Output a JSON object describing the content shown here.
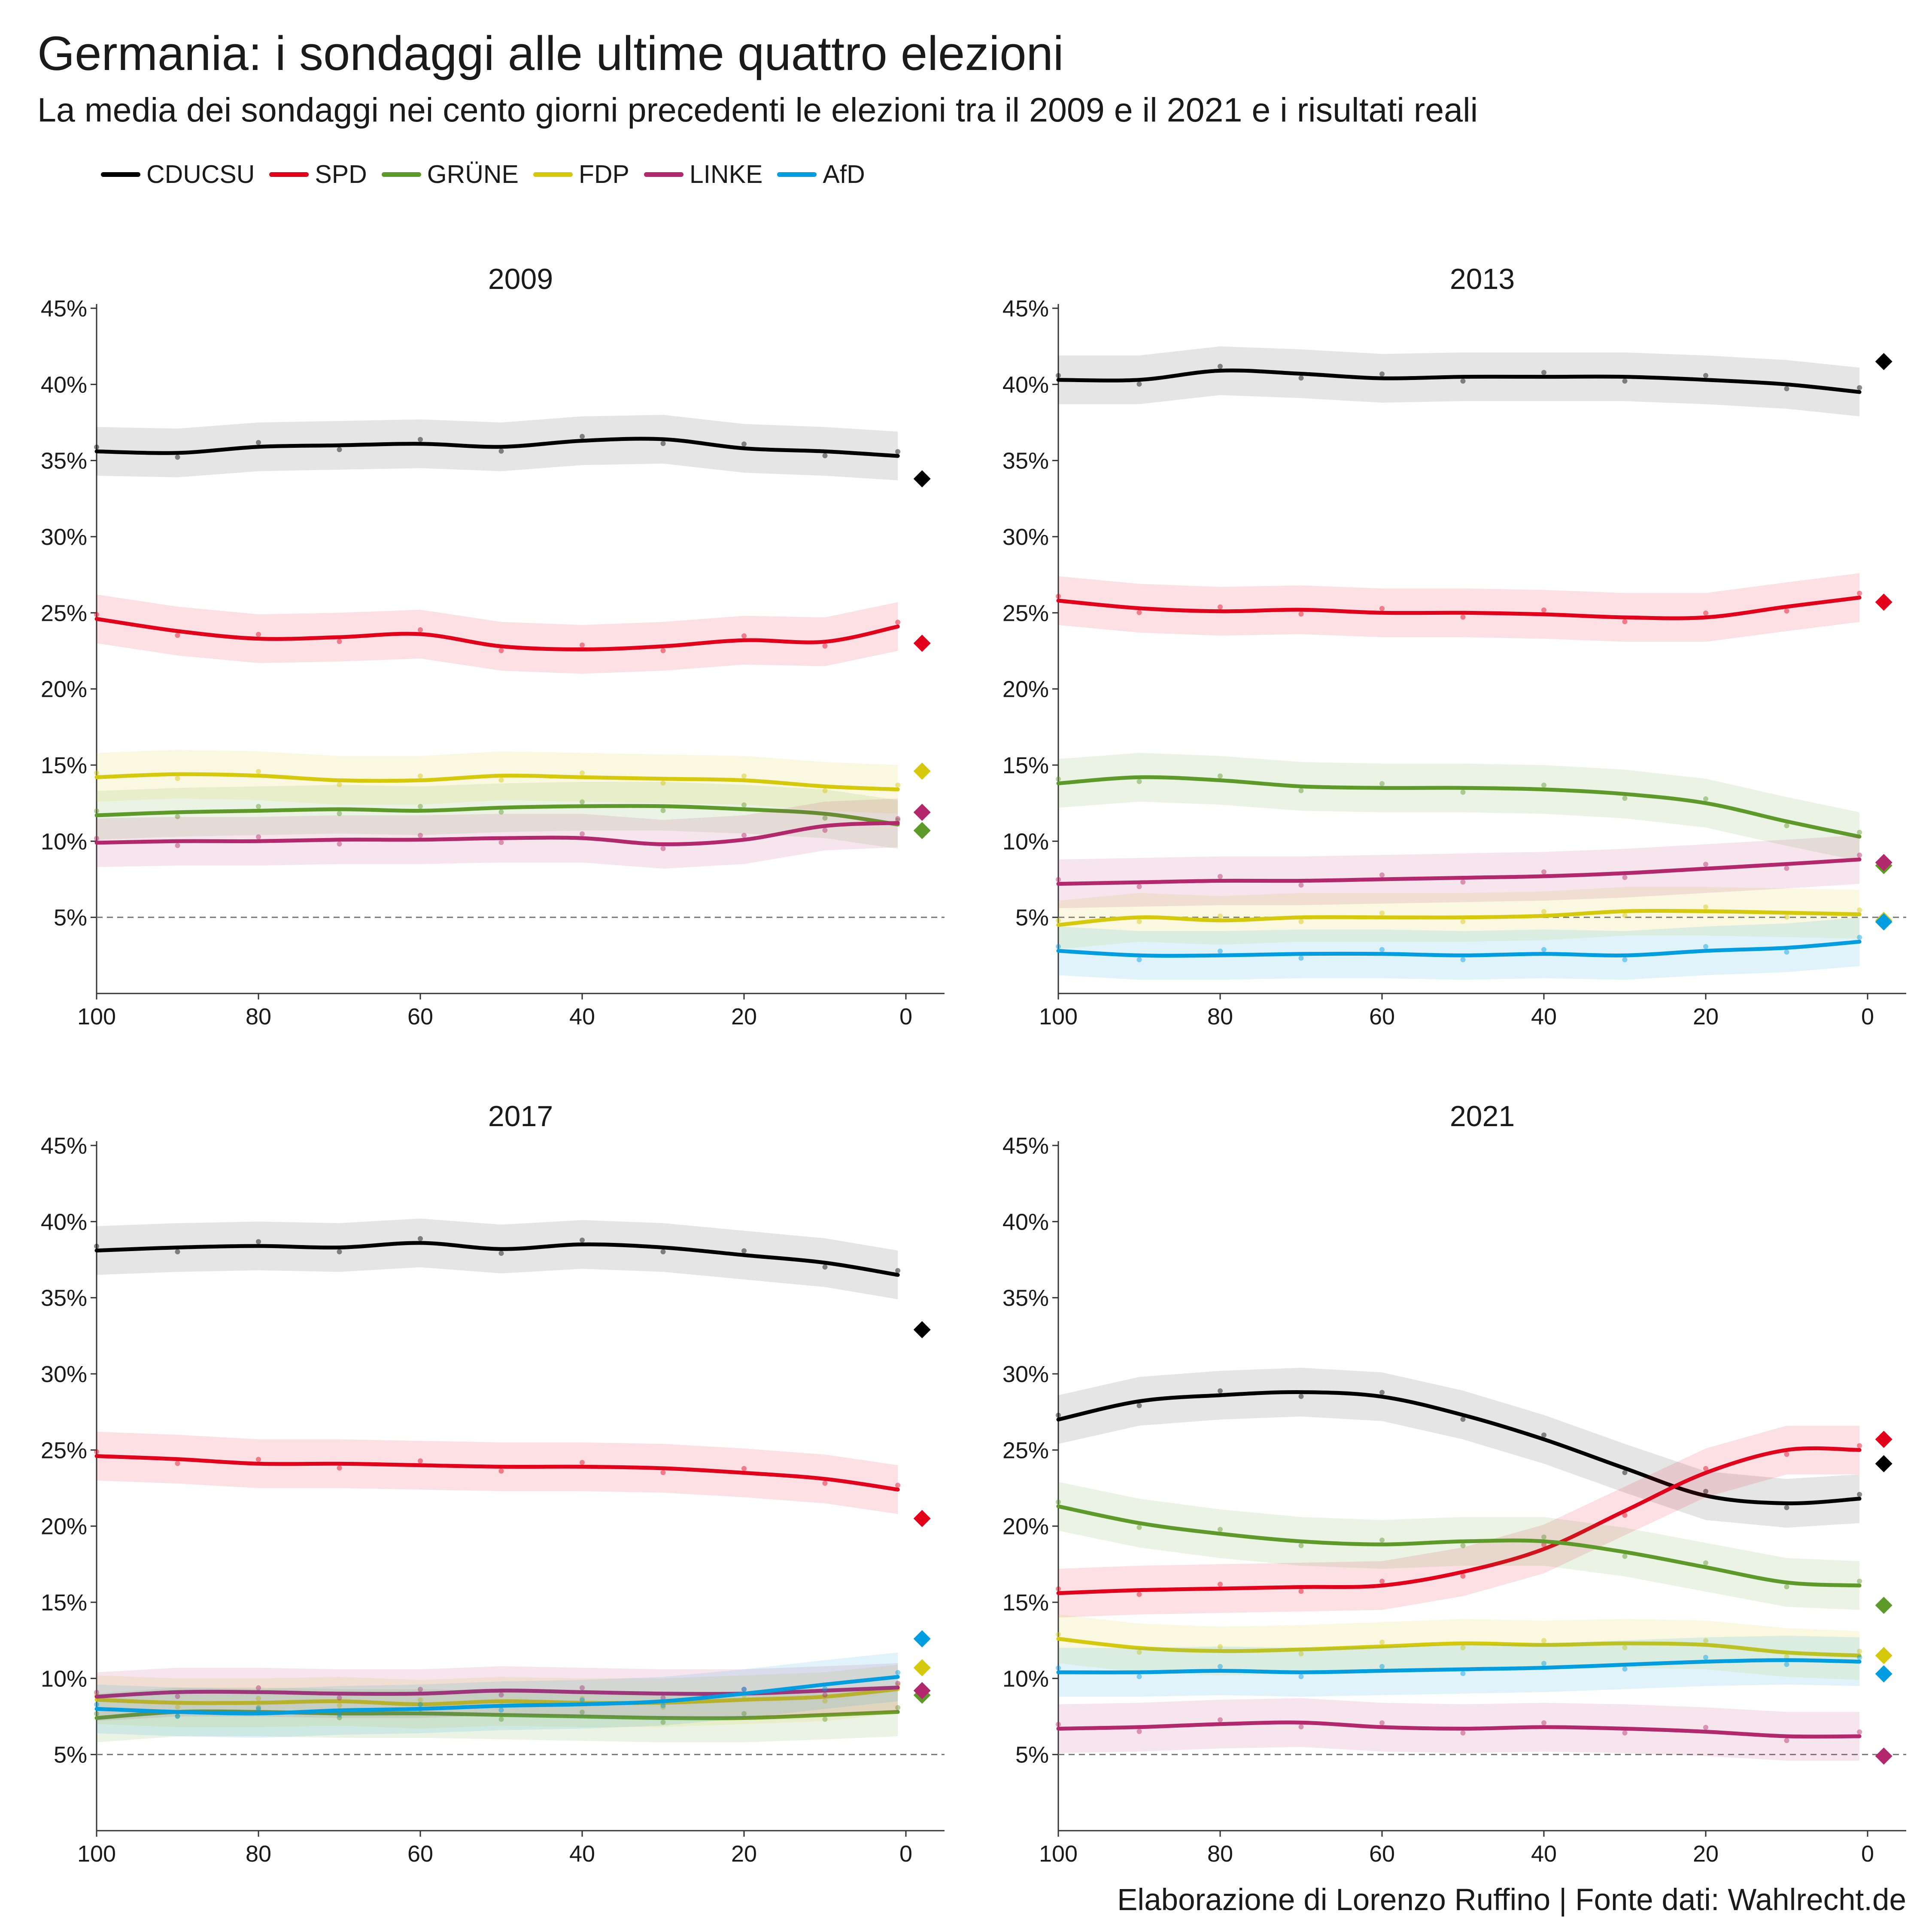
{
  "title": "Germania: i sondaggi alle ultime quattro elezioni",
  "subtitle": "La media dei sondaggi nei cento giorni precedenti le elezioni tra il 2009 e il 2021 e i risultati reali",
  "credit": "Elaborazione di Lorenzo Ruffino | Fonte dati: Wahlrecht.de",
  "legend": [
    {
      "name": "CDUCSU",
      "color": "#000000"
    },
    {
      "name": "SPD",
      "color": "#e3001b"
    },
    {
      "name": "GRÜNE",
      "color": "#5d9a2a"
    },
    {
      "name": "FDP",
      "color": "#d6c80a"
    },
    {
      "name": "LINKE",
      "color": "#b3276d"
    },
    {
      "name": "AfD",
      "color": "#009ee0"
    }
  ],
  "chart_data": [
    {
      "type": "line",
      "title": "2009",
      "xlabel": "",
      "ylabel": "",
      "xlim": [
        100,
        0
      ],
      "ylim": [
        0,
        45
      ],
      "x_ticks": [
        "100",
        "80",
        "60",
        "40",
        "20",
        "0"
      ],
      "y_ticks": [
        "5%",
        "10%",
        "15%",
        "20%",
        "25%",
        "30%",
        "35%",
        "40%",
        "45%"
      ],
      "threshold": 5,
      "x": [
        100,
        90,
        80,
        70,
        60,
        50,
        40,
        30,
        20,
        10,
        1
      ],
      "series": [
        {
          "name": "CDUCSU",
          "values": [
            35.6,
            35.5,
            35.9,
            36.0,
            36.1,
            35.9,
            36.3,
            36.4,
            35.8,
            35.6,
            35.3
          ],
          "result": 33.8
        },
        {
          "name": "SPD",
          "values": [
            24.6,
            23.8,
            23.3,
            23.4,
            23.6,
            22.8,
            22.6,
            22.8,
            23.2,
            23.1,
            24.1
          ],
          "result": 23.0
        },
        {
          "name": "GRÜNE",
          "values": [
            11.7,
            11.9,
            12.0,
            12.1,
            12.0,
            12.2,
            12.3,
            12.3,
            12.1,
            11.8,
            11.1
          ],
          "result": 10.7
        },
        {
          "name": "FDP",
          "values": [
            14.2,
            14.4,
            14.3,
            14.0,
            14.0,
            14.3,
            14.2,
            14.1,
            14.0,
            13.6,
            13.4
          ],
          "result": 14.6
        },
        {
          "name": "LINKE",
          "values": [
            9.9,
            10.0,
            10.0,
            10.1,
            10.1,
            10.2,
            10.2,
            9.8,
            10.1,
            11.0,
            11.2
          ],
          "result": 11.9
        }
      ]
    },
    {
      "type": "line",
      "title": "2013",
      "xlabel": "",
      "ylabel": "",
      "xlim": [
        100,
        0
      ],
      "ylim": [
        0,
        45
      ],
      "x_ticks": [
        "100",
        "80",
        "60",
        "40",
        "20",
        "0"
      ],
      "y_ticks": [
        "5%",
        "10%",
        "15%",
        "20%",
        "25%",
        "30%",
        "35%",
        "40%",
        "45%"
      ],
      "threshold": 5,
      "x": [
        100,
        90,
        80,
        70,
        60,
        50,
        40,
        30,
        20,
        10,
        1
      ],
      "series": [
        {
          "name": "CDUCSU",
          "values": [
            40.3,
            40.3,
            40.9,
            40.7,
            40.4,
            40.5,
            40.5,
            40.5,
            40.3,
            40.0,
            39.5
          ],
          "result": 41.5
        },
        {
          "name": "SPD",
          "values": [
            25.8,
            25.3,
            25.1,
            25.2,
            25.0,
            25.0,
            24.9,
            24.7,
            24.7,
            25.4,
            26.0
          ],
          "result": 25.7
        },
        {
          "name": "GRÜNE",
          "values": [
            13.8,
            14.2,
            14.0,
            13.6,
            13.5,
            13.5,
            13.4,
            13.1,
            12.5,
            11.3,
            10.3
          ],
          "result": 8.4
        },
        {
          "name": "FDP",
          "values": [
            4.5,
            5.0,
            4.8,
            5.0,
            5.0,
            5.0,
            5.1,
            5.4,
            5.4,
            5.3,
            5.2
          ],
          "result": 4.8
        },
        {
          "name": "LINKE",
          "values": [
            7.2,
            7.3,
            7.4,
            7.4,
            7.5,
            7.6,
            7.7,
            7.9,
            8.2,
            8.5,
            8.8
          ],
          "result": 8.6
        },
        {
          "name": "AfD",
          "values": [
            2.8,
            2.5,
            2.5,
            2.6,
            2.6,
            2.5,
            2.6,
            2.5,
            2.8,
            3.0,
            3.4
          ],
          "result": 4.7
        }
      ]
    },
    {
      "type": "line",
      "title": "2017",
      "xlabel": "",
      "ylabel": "",
      "xlim": [
        100,
        0
      ],
      "ylim": [
        0,
        45
      ],
      "x_ticks": [
        "100",
        "80",
        "60",
        "40",
        "20",
        "0"
      ],
      "y_ticks": [
        "5%",
        "10%",
        "15%",
        "20%",
        "25%",
        "30%",
        "35%",
        "40%",
        "45%"
      ],
      "threshold": 5,
      "x": [
        100,
        90,
        80,
        70,
        60,
        50,
        40,
        30,
        20,
        10,
        1
      ],
      "series": [
        {
          "name": "CDUCSU",
          "values": [
            38.1,
            38.3,
            38.4,
            38.3,
            38.6,
            38.2,
            38.5,
            38.3,
            37.8,
            37.3,
            36.5
          ],
          "result": 32.9
        },
        {
          "name": "SPD",
          "values": [
            24.6,
            24.4,
            24.1,
            24.1,
            24.0,
            23.9,
            23.9,
            23.8,
            23.5,
            23.1,
            22.4
          ],
          "result": 20.5
        },
        {
          "name": "GRÜNE",
          "values": [
            7.4,
            7.8,
            7.8,
            7.7,
            7.7,
            7.6,
            7.5,
            7.4,
            7.4,
            7.6,
            7.8
          ],
          "result": 8.9
        },
        {
          "name": "FDP",
          "values": [
            8.6,
            8.4,
            8.4,
            8.5,
            8.3,
            8.5,
            8.4,
            8.4,
            8.6,
            8.8,
            9.3
          ],
          "result": 10.7
        },
        {
          "name": "LINKE",
          "values": [
            8.8,
            9.1,
            9.1,
            9.0,
            9.0,
            9.2,
            9.1,
            9.0,
            9.0,
            9.2,
            9.4
          ],
          "result": 9.2
        },
        {
          "name": "AfD",
          "values": [
            8.0,
            7.8,
            7.7,
            7.9,
            8.0,
            8.2,
            8.3,
            8.5,
            9.0,
            9.6,
            10.1
          ],
          "result": 12.6
        }
      ]
    },
    {
      "type": "line",
      "title": "2021",
      "xlabel": "",
      "ylabel": "",
      "xlim": [
        100,
        0
      ],
      "ylim": [
        0,
        45
      ],
      "x_ticks": [
        "100",
        "80",
        "60",
        "40",
        "20",
        "0"
      ],
      "y_ticks": [
        "5%",
        "10%",
        "15%",
        "20%",
        "25%",
        "30%",
        "35%",
        "40%",
        "45%"
      ],
      "threshold": 5,
      "x": [
        100,
        90,
        80,
        70,
        60,
        50,
        40,
        30,
        20,
        10,
        1
      ],
      "series": [
        {
          "name": "CDUCSU",
          "values": [
            27.0,
            28.2,
            28.6,
            28.8,
            28.5,
            27.3,
            25.7,
            23.8,
            22.0,
            21.5,
            21.8
          ],
          "result": 24.1
        },
        {
          "name": "SPD",
          "values": [
            15.6,
            15.8,
            15.9,
            16.0,
            16.1,
            17.0,
            18.5,
            21.0,
            23.5,
            25.0,
            25.0
          ],
          "result": 25.7
        },
        {
          "name": "GRÜNE",
          "values": [
            21.3,
            20.2,
            19.5,
            19.0,
            18.8,
            19.0,
            19.0,
            18.3,
            17.3,
            16.3,
            16.1
          ],
          "result": 14.8
        },
        {
          "name": "FDP",
          "values": [
            12.6,
            12.0,
            11.8,
            11.9,
            12.1,
            12.3,
            12.2,
            12.3,
            12.2,
            11.7,
            11.5
          ],
          "result": 11.5
        },
        {
          "name": "LINKE",
          "values": [
            6.7,
            6.8,
            7.0,
            7.1,
            6.8,
            6.7,
            6.8,
            6.7,
            6.5,
            6.2,
            6.2
          ],
          "result": 4.9
        },
        {
          "name": "AfD",
          "values": [
            10.4,
            10.4,
            10.5,
            10.4,
            10.5,
            10.6,
            10.7,
            10.9,
            11.1,
            11.2,
            11.1
          ],
          "result": 10.3
        }
      ]
    }
  ]
}
